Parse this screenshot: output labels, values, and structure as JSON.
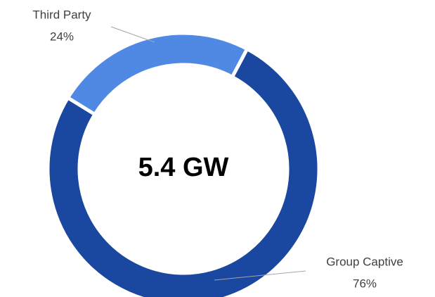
{
  "chart_data": {
    "type": "donut",
    "center_label": "5.4 GW",
    "categories": [
      "Group Captive",
      "Third Party"
    ],
    "values": [
      76,
      24
    ],
    "value_labels": [
      "76%",
      "24%"
    ],
    "colors": [
      "#1a47a0",
      "#5089e3"
    ]
  }
}
